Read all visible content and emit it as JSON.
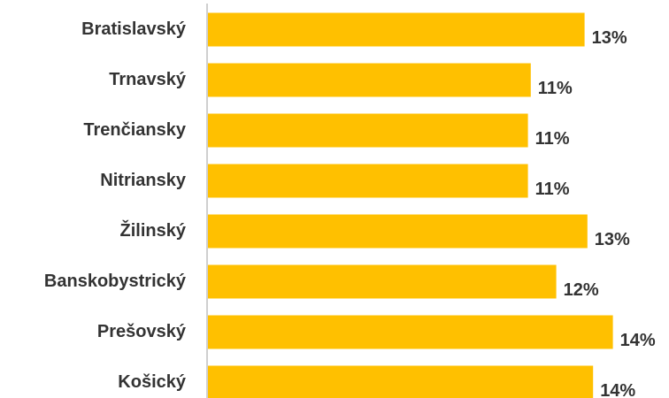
{
  "chart_data": {
    "type": "barh",
    "categories": [
      "Bratislavský",
      "Trnavský",
      "Trenčiansky",
      "Nitriansky",
      "Žilinský",
      "Banskobystrický",
      "Prešovský",
      "Košický"
    ],
    "values": [
      13.3,
      11.4,
      11.3,
      11.3,
      13.4,
      12.3,
      14.3,
      13.6
    ],
    "value_labels": [
      "13%",
      "11%",
      "11%",
      "11%",
      "13%",
      "12%",
      "14%",
      "14%"
    ],
    "color": "#ffc000",
    "xlim": [
      0,
      15
    ]
  }
}
